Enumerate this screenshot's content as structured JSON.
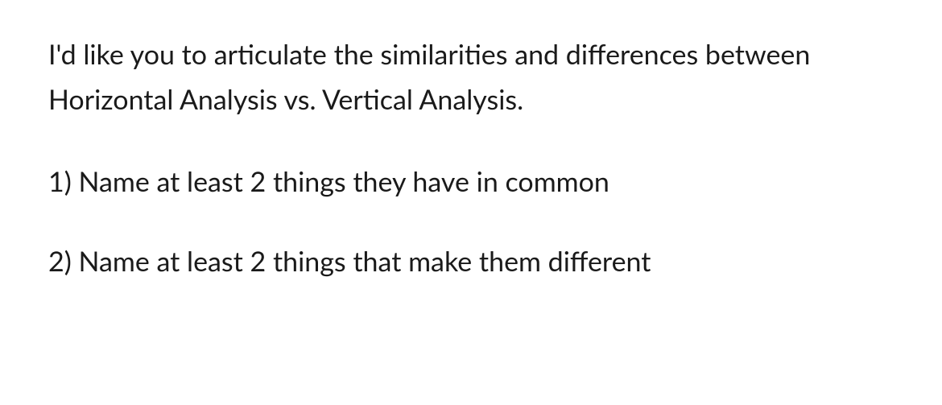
{
  "document": {
    "intro": "I'd like you to articulate the similarities and differences between Horizontal Analysis vs. Vertical Analysis.",
    "questions": [
      "1) Name at least 2 things they have in common",
      "2) Name at least 2 things that make them different"
    ],
    "text_color": "#1a1a1a",
    "background_color": "#ffffff",
    "font_size": 34,
    "font_family": "Segoe UI, Lato, sans-serif",
    "line_height": 1.65
  }
}
